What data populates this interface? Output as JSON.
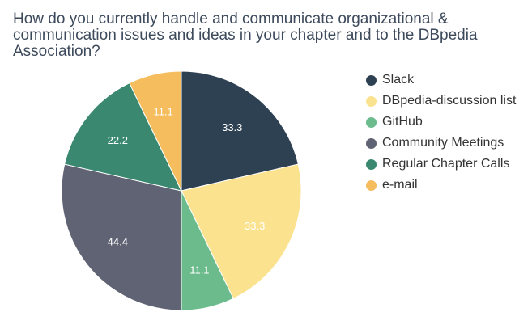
{
  "chart_data": {
    "type": "pie",
    "title": "How do you currently handle and communicate organizational & communication issues and ideas in your chapter and to the DBpedia Association?",
    "legend_position": "right",
    "slices": [
      {
        "label": "Slack",
        "value": 33.3,
        "color": "#2e4152",
        "label_color": "#ffffff"
      },
      {
        "label": "DBpedia-discussion list",
        "value": 33.3,
        "color": "#fae28f",
        "label_color": "#ffffff"
      },
      {
        "label": "GitHub",
        "value": 11.1,
        "color": "#6cbb8d",
        "label_color": "#ffffff"
      },
      {
        "label": "Community Meetings",
        "value": 44.4,
        "color": "#5f6373",
        "label_color": "#ffffff"
      },
      {
        "label": "Regular Chapter Calls",
        "value": 22.2,
        "color": "#3a8870",
        "label_color": "#ffffff"
      },
      {
        "label": "e-mail",
        "value": 11.1,
        "color": "#f5bd5e",
        "label_color": "#ffffff"
      }
    ]
  }
}
